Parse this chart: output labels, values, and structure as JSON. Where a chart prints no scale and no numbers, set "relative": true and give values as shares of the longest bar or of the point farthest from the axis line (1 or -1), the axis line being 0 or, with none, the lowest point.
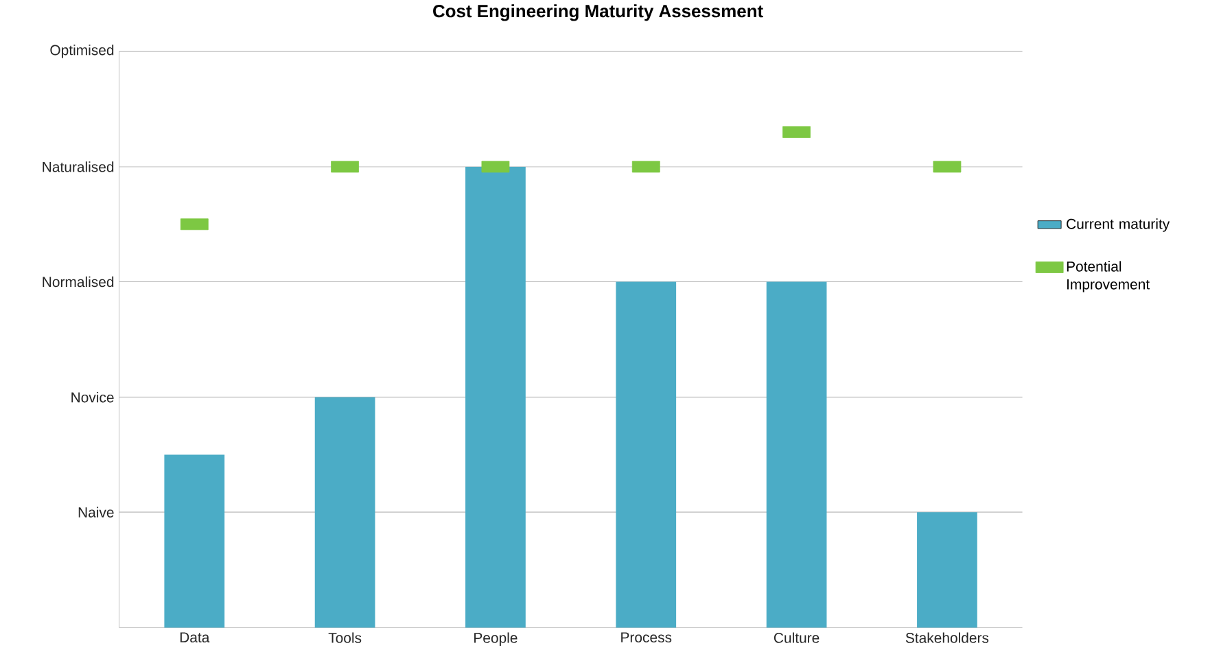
{
  "chart_data": {
    "type": "bar",
    "title": "Cost Engineering Maturity Assessment",
    "categories": [
      "Data",
      "Tools",
      "People",
      "Process",
      "Culture",
      "Stakeholders"
    ],
    "relative": true,
    "series": [
      {
        "name": "Current maturity",
        "color": "#4bacc6",
        "values": [
          0.349,
          0.465,
          0.93,
          0.698,
          0.698,
          0.233
        ]
      },
      {
        "name": "Potential Improvement",
        "type": "scatter",
        "color": "#7dc843",
        "values": [
          0.814,
          0.93,
          0.93,
          0.93,
          1,
          0.93
        ],
        "marker": "square"
      }
    ],
    "ref_lines": [
      {
        "axis": "y",
        "value": 0.233,
        "label": "Naive"
      },
      {
        "axis": "y",
        "value": 0.465,
        "label": "Novice"
      },
      {
        "axis": "y",
        "value": 0.698,
        "label": "Normalised"
      },
      {
        "axis": "y",
        "value": 0.93,
        "label": "Naturalised"
      },
      {
        "axis": "y",
        "value": 1.163,
        "label": "Optimised"
      }
    ],
    "legend": "right"
  }
}
